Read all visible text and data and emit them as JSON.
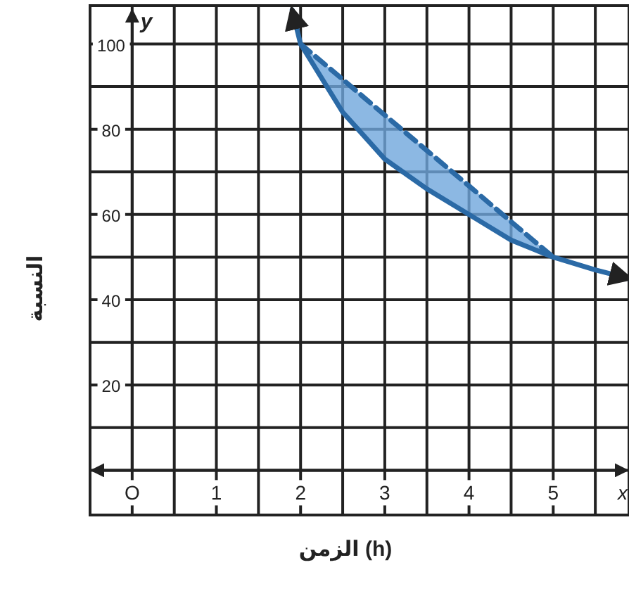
{
  "chart_data": {
    "type": "line",
    "xlabel": "الزمن (h)",
    "ylabel": "النسبة",
    "annotations": [
      "y",
      "x"
    ],
    "xlim": [
      -0.5,
      5.9
    ],
    "ylim": [
      -10.5,
      109
    ],
    "xticks": [
      {
        "value": 0,
        "label": "O"
      },
      {
        "value": 0.5,
        "label": null
      },
      1,
      {
        "value": 1.5,
        "label": null
      },
      2,
      {
        "value": 2.5,
        "label": null
      },
      3,
      {
        "value": 3.5,
        "label": null
      },
      4,
      {
        "value": 4.5,
        "label": null
      },
      5,
      {
        "value": 5.5,
        "label": null
      }
    ],
    "yticks": [
      {
        "value": 0,
        "label": null
      },
      {
        "value": 10,
        "label": null
      },
      20,
      {
        "value": 30,
        "label": null
      },
      40,
      {
        "value": 50,
        "label": null
      },
      60,
      {
        "value": 70,
        "label": null
      },
      80,
      {
        "value": 90,
        "label": null
      },
      100
    ],
    "grid": true,
    "series": [
      {
        "color": "#2b6aa6",
        "line_style": "solid",
        "x": [
          1.9,
          2,
          2.5,
          3,
          3.5,
          4,
          4.5,
          5,
          5.5,
          5.9
        ],
        "values": [
          108,
          100,
          84,
          73,
          66,
          60,
          54,
          50,
          47,
          45
        ]
      },
      {
        "color": "#2b6aa6",
        "line_style": "dashed",
        "x": [
          2,
          2.5,
          3,
          3.5,
          4,
          4.5,
          5
        ],
        "values": [
          100,
          91.7,
          83.3,
          75,
          66.7,
          58.3,
          50
        ],
        "lower": [
          100,
          84,
          73,
          66,
          60,
          54,
          50
        ],
        "upper": [
          100,
          91.7,
          83.3,
          75,
          66.7,
          58.3,
          50
        ]
      }
    ]
  }
}
